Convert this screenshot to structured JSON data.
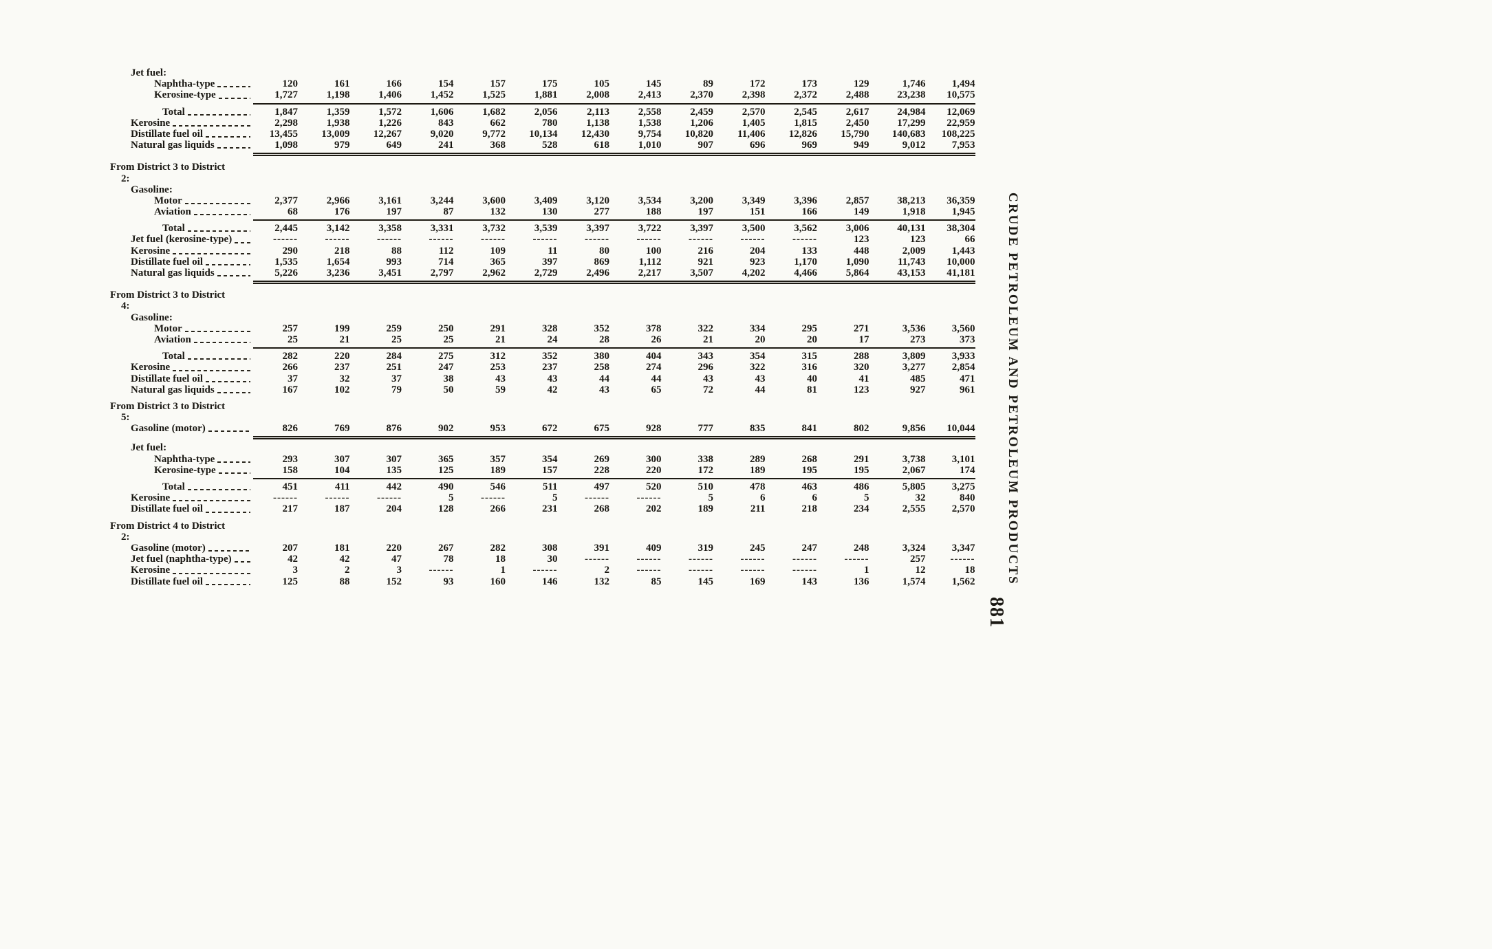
{
  "page": {
    "side_title": "CRUDE PETROLEUM AND PETROLEUM PRODUCTS",
    "page_number": "881"
  },
  "table": {
    "sections": [
      {
        "header": null,
        "rows": [
          {
            "type": "row",
            "label": "Jet fuel:",
            "indent": 1,
            "leader": false
          },
          {
            "type": "row",
            "label": "Naphtha-type",
            "indent": 2,
            "leader": true,
            "values": [
              "120",
              "161",
              "166",
              "154",
              "157",
              "175",
              "105",
              "145",
              "89",
              "172",
              "173",
              "129",
              "1,746",
              "1,494"
            ]
          },
          {
            "type": "row",
            "label": "Kerosine-type",
            "indent": 2,
            "leader": true,
            "values": [
              "1,727",
              "1,198",
              "1,406",
              "1,452",
              "1,525",
              "1,881",
              "2,008",
              "2,413",
              "2,370",
              "2,398",
              "2,372",
              "2,488",
              "23,238",
              "10,575"
            ]
          },
          {
            "type": "rule"
          },
          {
            "type": "row",
            "label": "Total",
            "indent": 3,
            "leader": true,
            "values": [
              "1,847",
              "1,359",
              "1,572",
              "1,606",
              "1,682",
              "2,056",
              "2,113",
              "2,558",
              "2,459",
              "2,570",
              "2,545",
              "2,617",
              "24,984",
              "12,069"
            ]
          },
          {
            "type": "row",
            "label": "Kerosine",
            "indent": 1,
            "leader": true,
            "values": [
              "2,298",
              "1,938",
              "1,226",
              "843",
              "662",
              "780",
              "1,138",
              "1,538",
              "1,206",
              "1,405",
              "1,815",
              "2,450",
              "17,299",
              "22,959"
            ]
          },
          {
            "type": "row",
            "label": "Distillate fuel oil",
            "indent": 1,
            "leader": true,
            "values": [
              "13,455",
              "13,009",
              "12,267",
              "9,020",
              "9,772",
              "10,134",
              "12,430",
              "9,754",
              "10,820",
              "11,406",
              "12,826",
              "15,790",
              "140,683",
              "108,225"
            ]
          },
          {
            "type": "row",
            "label": "Natural gas liquids",
            "indent": 1,
            "leader": true,
            "values": [
              "1,098",
              "979",
              "649",
              "241",
              "368",
              "528",
              "618",
              "1,010",
              "907",
              "696",
              "969",
              "949",
              "9,012",
              "7,953"
            ]
          },
          {
            "type": "drule"
          }
        ]
      },
      {
        "header": [
          "From District 3 to District",
          "2:"
        ],
        "rows": [
          {
            "type": "row",
            "label": "Gasoline:",
            "indent": 1,
            "leader": false
          },
          {
            "type": "row",
            "label": "Motor",
            "indent": 2,
            "leader": true,
            "values": [
              "2,377",
              "2,966",
              "3,161",
              "3,244",
              "3,600",
              "3,409",
              "3,120",
              "3,534",
              "3,200",
              "3,349",
              "3,396",
              "2,857",
              "38,213",
              "36,359"
            ]
          },
          {
            "type": "row",
            "label": "Aviation",
            "indent": 2,
            "leader": true,
            "values": [
              "68",
              "176",
              "197",
              "87",
              "132",
              "130",
              "277",
              "188",
              "197",
              "151",
              "166",
              "149",
              "1,918",
              "1,945"
            ]
          },
          {
            "type": "rule"
          },
          {
            "type": "row",
            "label": "Total",
            "indent": 3,
            "leader": true,
            "values": [
              "2,445",
              "3,142",
              "3,358",
              "3,331",
              "3,732",
              "3,539",
              "3,397",
              "3,722",
              "3,397",
              "3,500",
              "3,562",
              "3,006",
              "40,131",
              "38,304"
            ]
          },
          {
            "type": "row",
            "label": "Jet fuel (kerosine-type)",
            "indent": 1,
            "leader": true,
            "values": [
              "------",
              "------",
              "------",
              "------",
              "------",
              "------",
              "------",
              "------",
              "------",
              "------",
              "------",
              "123",
              "123",
              "66"
            ]
          },
          {
            "type": "row",
            "label": "Kerosine",
            "indent": 1,
            "leader": true,
            "values": [
              "290",
              "218",
              "88",
              "112",
              "109",
              "11",
              "80",
              "100",
              "216",
              "204",
              "133",
              "448",
              "2,009",
              "1,443"
            ]
          },
          {
            "type": "row",
            "label": "Distillate fuel oil",
            "indent": 1,
            "leader": true,
            "values": [
              "1,535",
              "1,654",
              "993",
              "714",
              "365",
              "397",
              "869",
              "1,112",
              "921",
              "923",
              "1,170",
              "1,090",
              "11,743",
              "10,000"
            ]
          },
          {
            "type": "row",
            "label": "Natural gas liquids",
            "indent": 1,
            "leader": true,
            "values": [
              "5,226",
              "3,236",
              "3,451",
              "2,797",
              "2,962",
              "2,729",
              "2,496",
              "2,217",
              "3,507",
              "4,202",
              "4,466",
              "5,864",
              "43,153",
              "41,181"
            ]
          },
          {
            "type": "drule"
          }
        ]
      },
      {
        "header": [
          "From District 3 to District",
          "4:"
        ],
        "rows": [
          {
            "type": "row",
            "label": "Gasoline:",
            "indent": 1,
            "leader": false
          },
          {
            "type": "row",
            "label": "Motor",
            "indent": 2,
            "leader": true,
            "values": [
              "257",
              "199",
              "259",
              "250",
              "291",
              "328",
              "352",
              "378",
              "322",
              "334",
              "295",
              "271",
              "3,536",
              "3,560"
            ]
          },
          {
            "type": "row",
            "label": "Aviation",
            "indent": 2,
            "leader": true,
            "values": [
              "25",
              "21",
              "25",
              "25",
              "21",
              "24",
              "28",
              "26",
              "21",
              "20",
              "20",
              "17",
              "273",
              "373"
            ]
          },
          {
            "type": "rule"
          },
          {
            "type": "row",
            "label": "Total",
            "indent": 3,
            "leader": true,
            "values": [
              "282",
              "220",
              "284",
              "275",
              "312",
              "352",
              "380",
              "404",
              "343",
              "354",
              "315",
              "288",
              "3,809",
              "3,933"
            ]
          },
          {
            "type": "row",
            "label": "Kerosine",
            "indent": 1,
            "leader": true,
            "values": [
              "266",
              "237",
              "251",
              "247",
              "253",
              "237",
              "258",
              "274",
              "296",
              "322",
              "316",
              "320",
              "3,277",
              "2,854"
            ]
          },
          {
            "type": "row",
            "label": "Distillate fuel oil",
            "indent": 1,
            "leader": true,
            "values": [
              "37",
              "32",
              "37",
              "38",
              "43",
              "43",
              "44",
              "44",
              "43",
              "43",
              "40",
              "41",
              "485",
              "471"
            ]
          },
          {
            "type": "row",
            "label": "Natural gas liquids",
            "indent": 1,
            "leader": true,
            "values": [
              "167",
              "102",
              "79",
              "50",
              "59",
              "42",
              "43",
              "65",
              "72",
              "44",
              "81",
              "123",
              "927",
              "961"
            ]
          }
        ]
      },
      {
        "header": [
          "From District 3 to District",
          "5:"
        ],
        "rows": [
          {
            "type": "row",
            "label": "Gasoline (motor)",
            "indent": 1,
            "leader": true,
            "values": [
              "826",
              "769",
              "876",
              "902",
              "953",
              "672",
              "675",
              "928",
              "777",
              "835",
              "841",
              "802",
              "9,856",
              "10,044"
            ]
          },
          {
            "type": "drule"
          },
          {
            "type": "row",
            "label": "Jet fuel:",
            "indent": 1,
            "leader": false
          },
          {
            "type": "row",
            "label": "Naphtha-type",
            "indent": 2,
            "leader": true,
            "values": [
              "293",
              "307",
              "307",
              "365",
              "357",
              "354",
              "269",
              "300",
              "338",
              "289",
              "268",
              "291",
              "3,738",
              "3,101"
            ]
          },
          {
            "type": "row",
            "label": "Kerosine-type",
            "indent": 2,
            "leader": true,
            "values": [
              "158",
              "104",
              "135",
              "125",
              "189",
              "157",
              "228",
              "220",
              "172",
              "189",
              "195",
              "195",
              "2,067",
              "174"
            ]
          },
          {
            "type": "rule"
          },
          {
            "type": "row",
            "label": "Total",
            "indent": 3,
            "leader": true,
            "values": [
              "451",
              "411",
              "442",
              "490",
              "546",
              "511",
              "497",
              "520",
              "510",
              "478",
              "463",
              "486",
              "5,805",
              "3,275"
            ]
          },
          {
            "type": "row",
            "label": "Kerosine",
            "indent": 1,
            "leader": true,
            "values": [
              "------",
              "------",
              "------",
              "5",
              "------",
              "5",
              "------",
              "------",
              "5",
              "6",
              "6",
              "5",
              "32",
              "840"
            ]
          },
          {
            "type": "row",
            "label": "Distillate fuel oil",
            "indent": 1,
            "leader": true,
            "values": [
              "217",
              "187",
              "204",
              "128",
              "266",
              "231",
              "268",
              "202",
              "189",
              "211",
              "218",
              "234",
              "2,555",
              "2,570"
            ]
          }
        ]
      },
      {
        "header": [
          "From District 4 to District",
          "2:"
        ],
        "rows": [
          {
            "type": "row",
            "label": "Gasoline (motor)",
            "indent": 1,
            "leader": true,
            "values": [
              "207",
              "181",
              "220",
              "267",
              "282",
              "308",
              "391",
              "409",
              "319",
              "245",
              "247",
              "248",
              "3,324",
              "3,347"
            ]
          },
          {
            "type": "row",
            "label": "Jet fuel (naphtha-type)",
            "indent": 1,
            "leader": true,
            "values": [
              "42",
              "42",
              "47",
              "78",
              "18",
              "30",
              "------",
              "------",
              "------",
              "------",
              "------",
              "------",
              "257",
              "------"
            ]
          },
          {
            "type": "row",
            "label": "Kerosine",
            "indent": 1,
            "leader": true,
            "values": [
              "3",
              "2",
              "3",
              "------",
              "1",
              "------",
              "2",
              "------",
              "------",
              "------",
              "------",
              "1",
              "12",
              "18"
            ]
          },
          {
            "type": "row",
            "label": "Distillate fuel oil",
            "indent": 1,
            "leader": true,
            "values": [
              "125",
              "88",
              "152",
              "93",
              "160",
              "146",
              "132",
              "85",
              "145",
              "169",
              "143",
              "136",
              "1,574",
              "1,562"
            ]
          }
        ]
      }
    ]
  }
}
